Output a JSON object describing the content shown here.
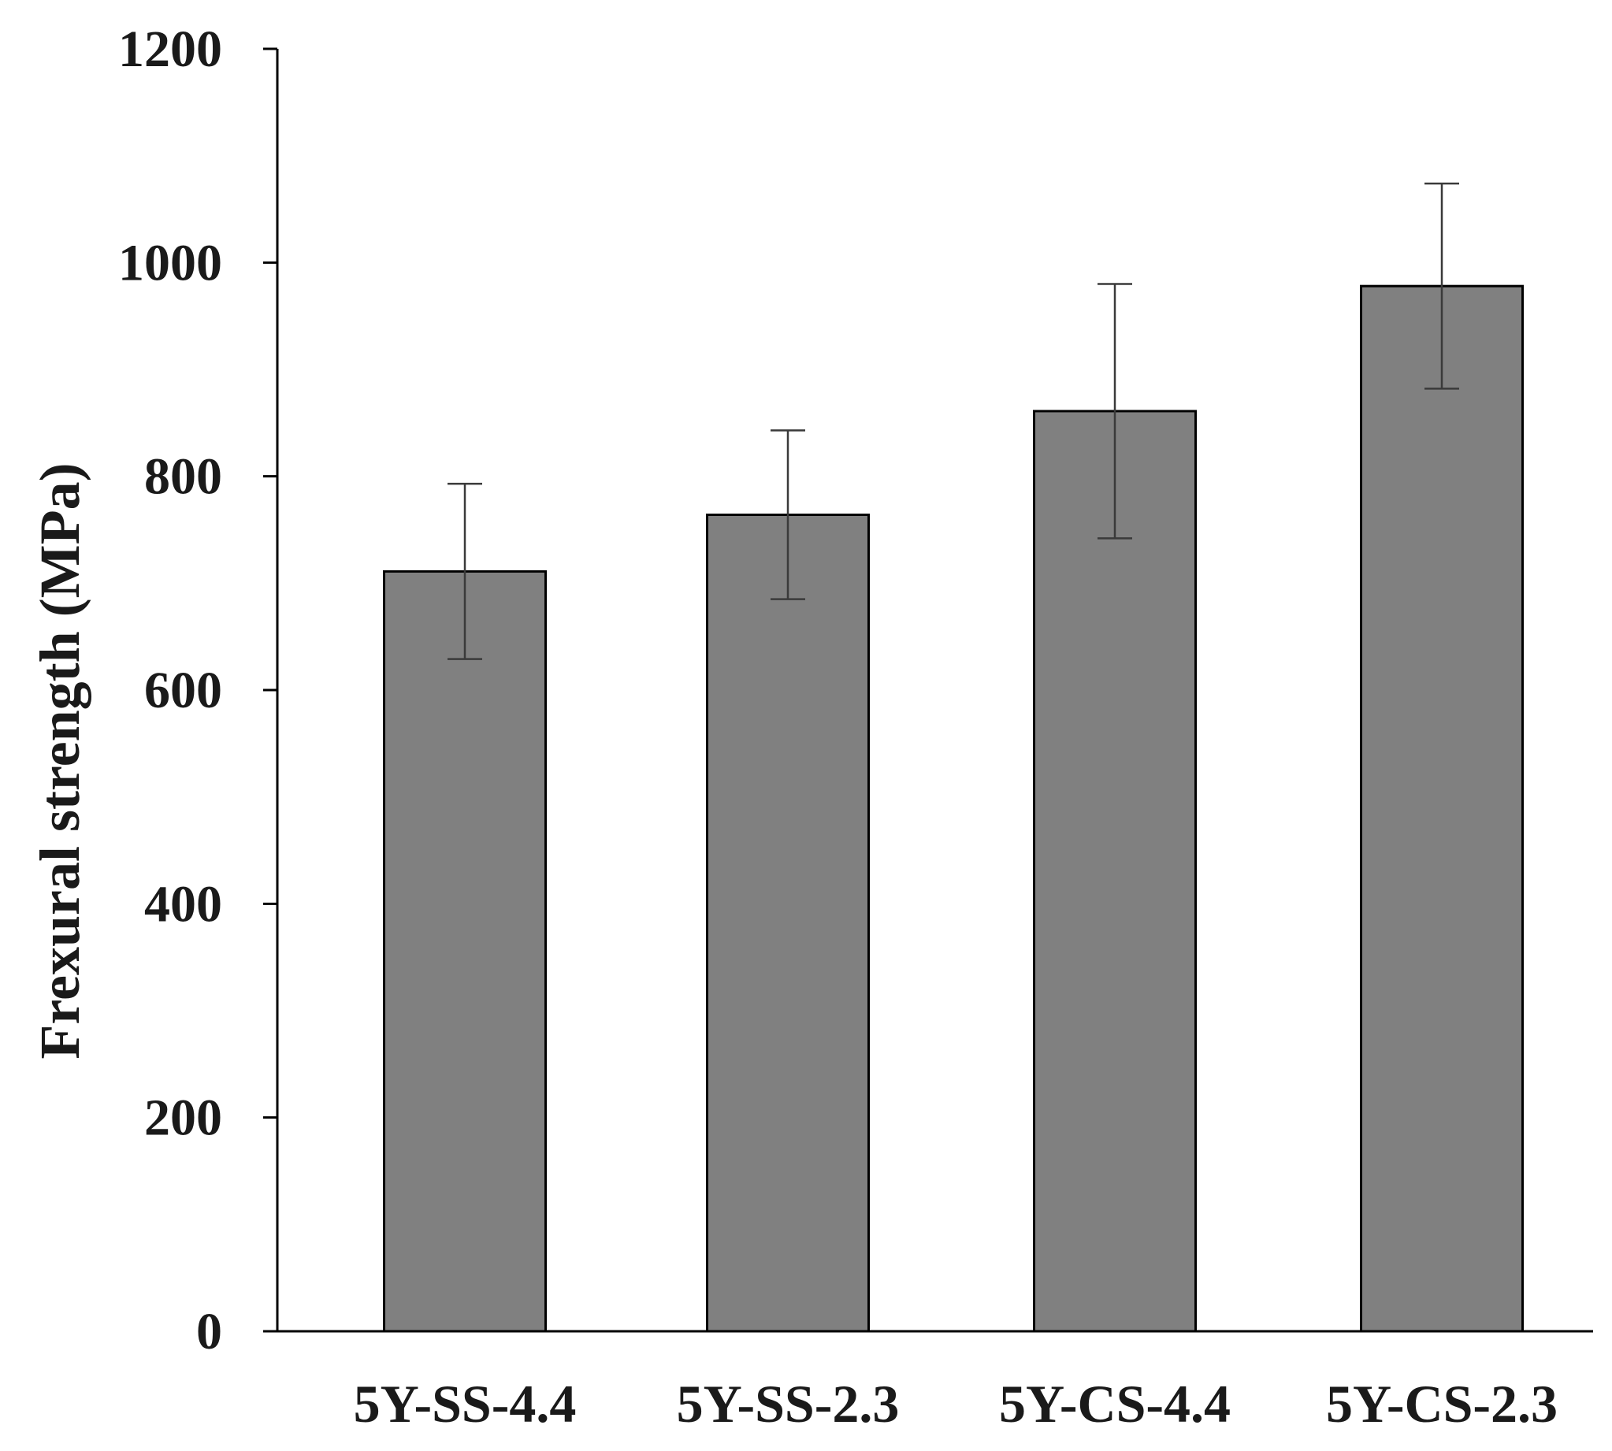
{
  "chart_data": {
    "type": "bar",
    "title": "",
    "xlabel": "",
    "ylabel": "Frexural strength (MPa)",
    "ylim": [
      0,
      1200
    ],
    "yticks": [
      0,
      200,
      400,
      600,
      800,
      1000,
      1200
    ],
    "grid": false,
    "legend": "none",
    "categories": [
      "5Y-SS-4.4",
      "5Y-SS-2.3",
      "5Y-CS-4.4",
      "5Y-CS-2.3"
    ],
    "series": [
      {
        "values": [
          711,
          764,
          861,
          978
        ],
        "error": [
          82,
          79,
          119,
          96
        ],
        "color": "#808080"
      }
    ]
  }
}
